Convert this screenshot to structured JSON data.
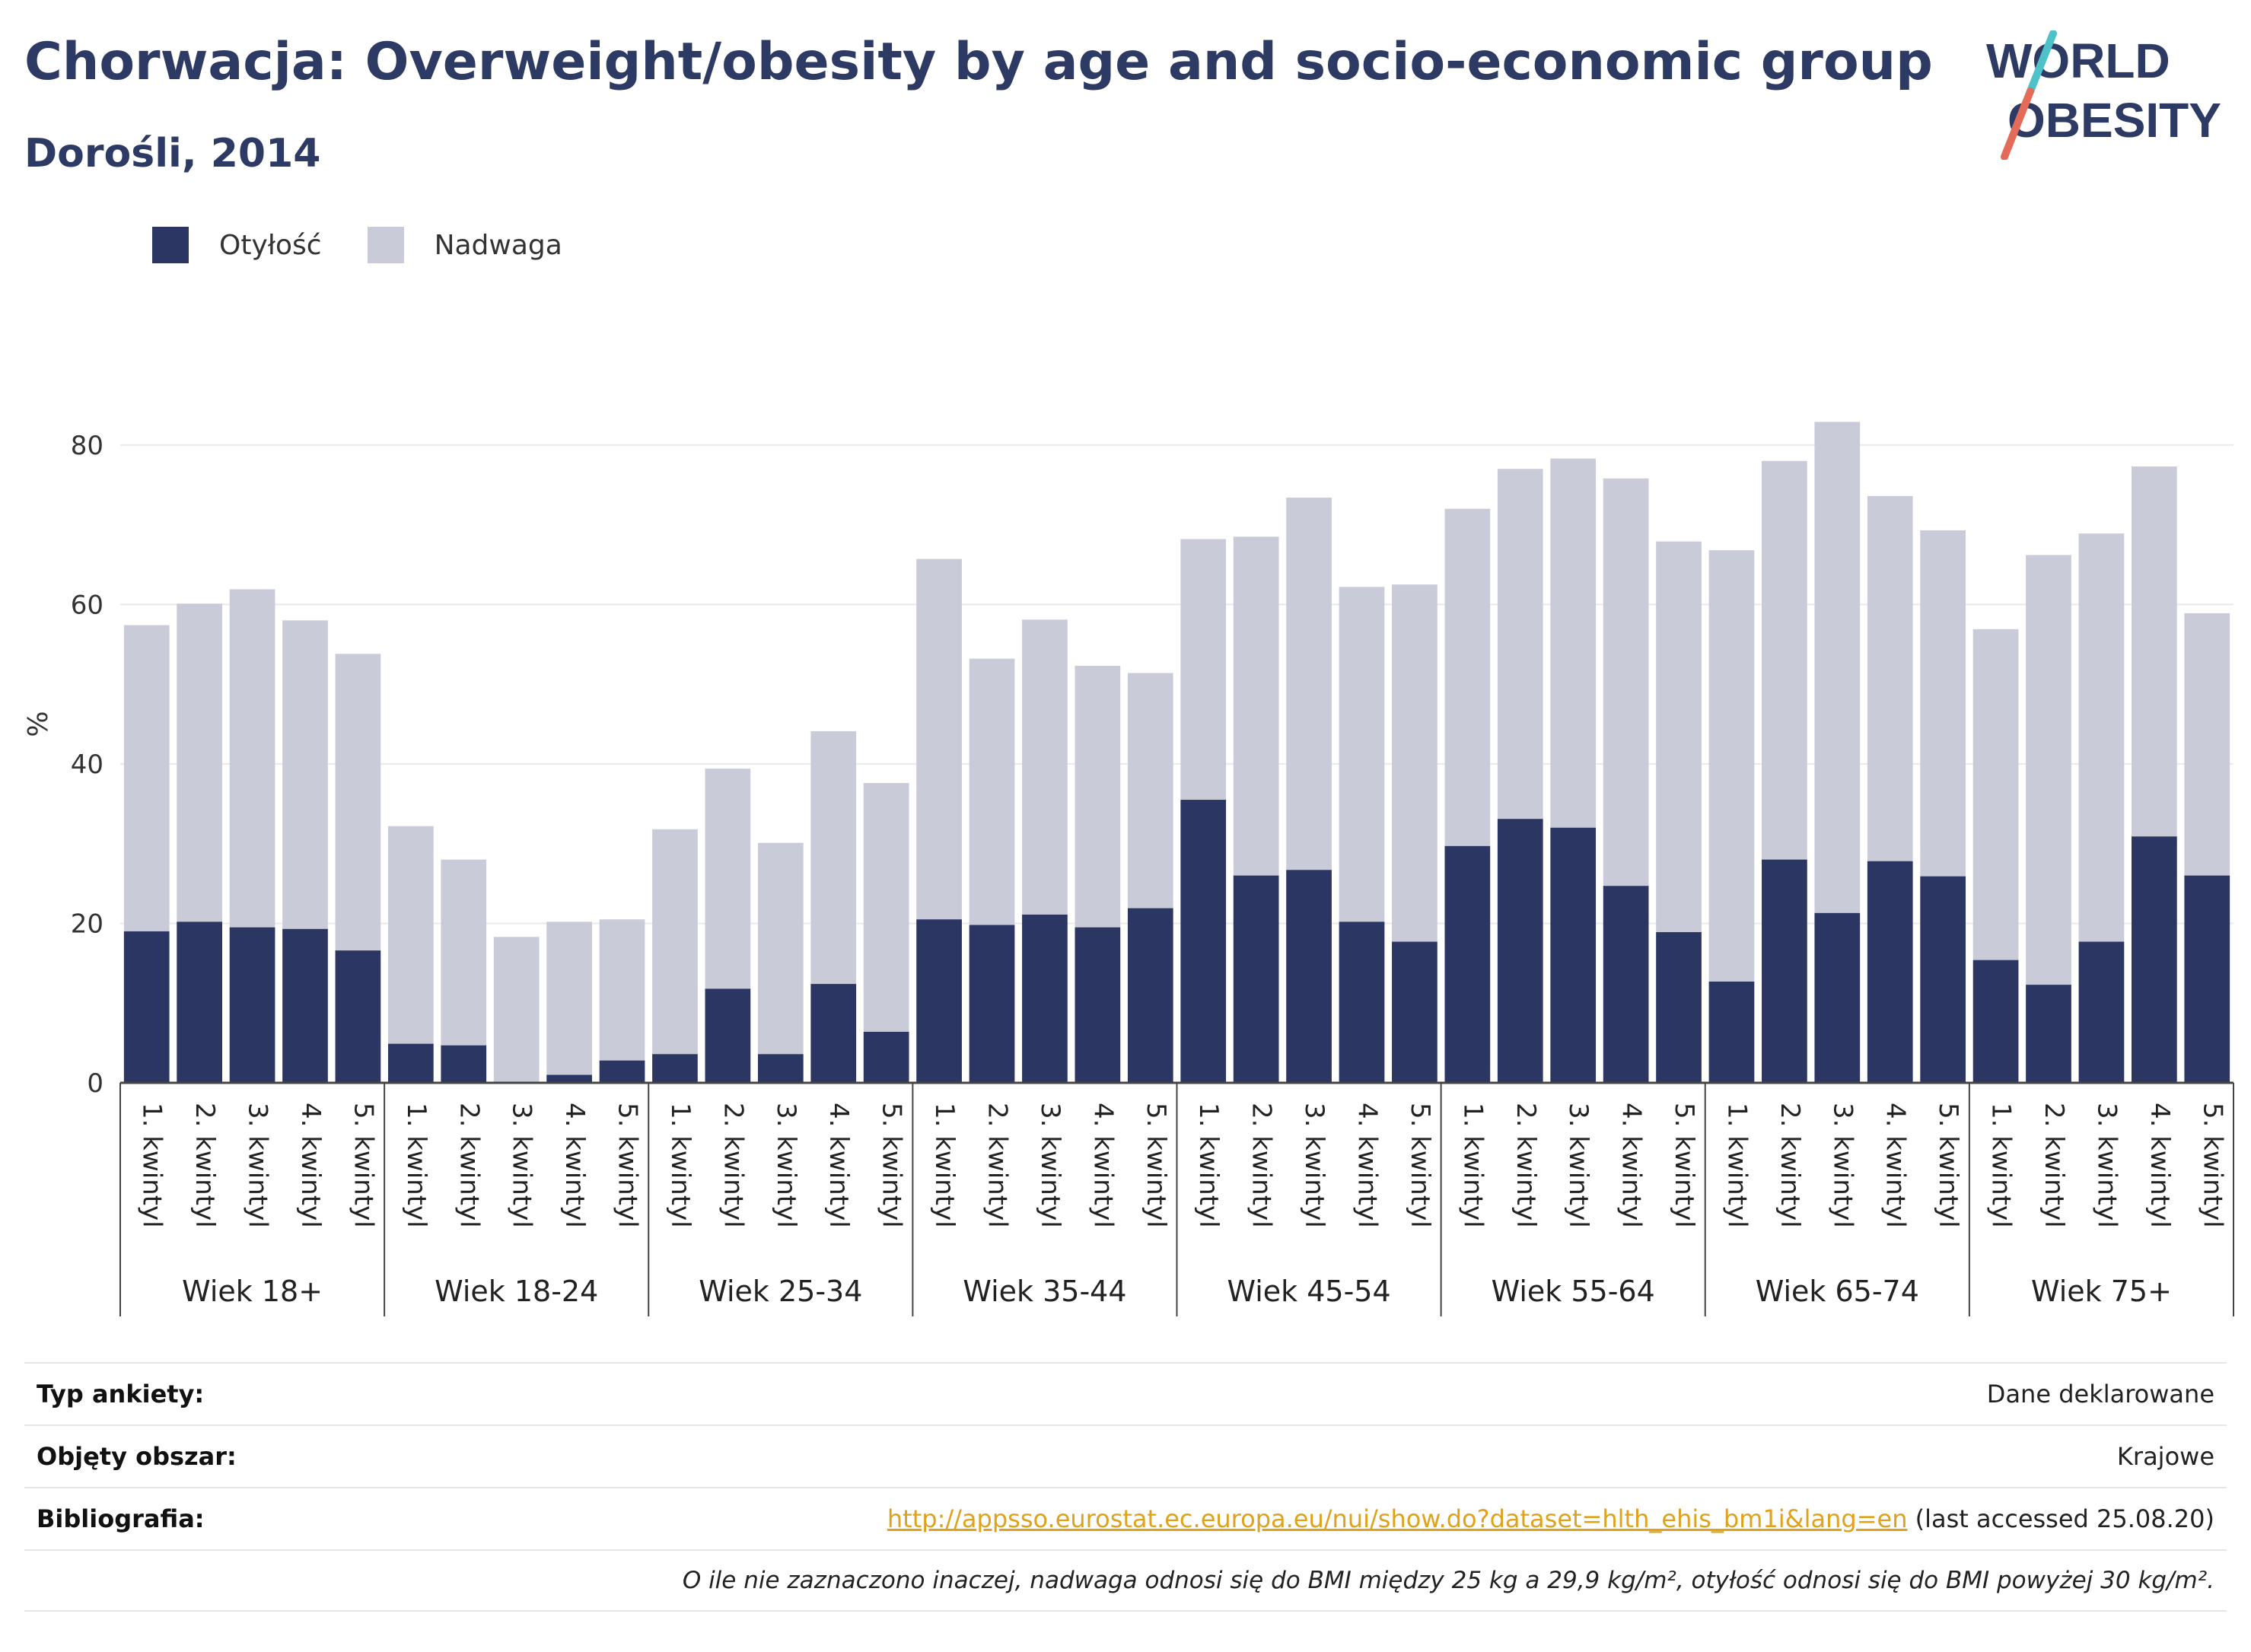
{
  "header": {
    "title": "Chorwacja: Overweight/obesity by age and socio-economic group",
    "subtitle": "Dorośli, 2014"
  },
  "logo": {
    "line1": "WORLD",
    "line2": "OBESITY"
  },
  "colors": {
    "obesity": "#2b3663",
    "overweight": "#cacbd8",
    "accent_teal": "#4fc1c9",
    "accent_red": "#e46a5a",
    "link": "#e0a11b"
  },
  "chart_data": {
    "type": "bar",
    "stacked": true,
    "ylabel": "%",
    "ylim": [
      0,
      90
    ],
    "yticks": [
      0,
      20,
      40,
      60,
      80
    ],
    "grid": true,
    "legend_position": "top-left",
    "group_prefix_note": "",
    "groups": [
      {
        "label": "Wiek 18+",
        "obesity": [
          19,
          20.2,
          19.5,
          19.3,
          16.6
        ],
        "total": [
          57.4,
          60.1,
          61.9,
          58,
          53.8
        ]
      },
      {
        "label": "Wiek 18-24",
        "obesity": [
          4.9,
          4.7,
          0,
          1,
          2.8
        ],
        "total": [
          32.2,
          28,
          18.3,
          20.2,
          20.5
        ]
      },
      {
        "label": "Wiek 25-34",
        "obesity": [
          3.6,
          11.8,
          3.6,
          12.4,
          6.4
        ],
        "total": [
          31.8,
          39.4,
          30.1,
          44.1,
          37.6
        ]
      },
      {
        "label": "Wiek 35-44",
        "obesity": [
          20.5,
          19.8,
          21.1,
          19.5,
          21.9
        ],
        "total": [
          65.7,
          53.2,
          58.1,
          52.3,
          51.4
        ]
      },
      {
        "label": "Wiek 45-54",
        "obesity": [
          35.5,
          26,
          26.7,
          20.2,
          17.7
        ],
        "total": [
          68.2,
          68.5,
          73.4,
          62.2,
          62.5
        ]
      },
      {
        "label": "Wiek 55-64",
        "obesity": [
          29.7,
          33.1,
          32,
          24.7,
          18.9
        ],
        "total": [
          72,
          77,
          78.3,
          75.8,
          67.9
        ]
      },
      {
        "label": "Wiek 65-74",
        "obesity": [
          12.7,
          28,
          21.3,
          27.8,
          25.9
        ],
        "total": [
          66.8,
          78,
          82.9,
          73.6,
          69.3
        ]
      },
      {
        "label": "Wiek 75+",
        "obesity": [
          15.4,
          12.3,
          17.7,
          30.9,
          26
        ],
        "total": [
          56.9,
          66.2,
          68.9,
          77.3,
          58.9
        ]
      }
    ],
    "categories": [
      "1. kwintyl",
      "2. kwintyl",
      "3. kwintyl",
      "4. kwintyl",
      "5. kwintyl"
    ],
    "series": [
      {
        "name": "Otyłość"
      },
      {
        "name": "Nadwaga"
      }
    ]
  },
  "info": {
    "survey_type_label": "Typ ankiety:",
    "survey_type_value": "Dane deklarowane",
    "coverage_label": "Objęty obszar:",
    "coverage_value": "Krajowe",
    "bibliography_label": "Bibliografia:",
    "bibliography_link": "http://appsso.eurostat.ec.europa.eu/nui/show.do?dataset=hlth_ehis_bm1i&lang=en",
    "bibliography_accessed": "(last accessed 25.08.20)",
    "note": "O ile nie zaznaczono inaczej, nadwaga odnosi się do BMI między 25 kg a 29,9 kg/m², otyłość odnosi się do BMI powyżej 30 kg/m²."
  }
}
